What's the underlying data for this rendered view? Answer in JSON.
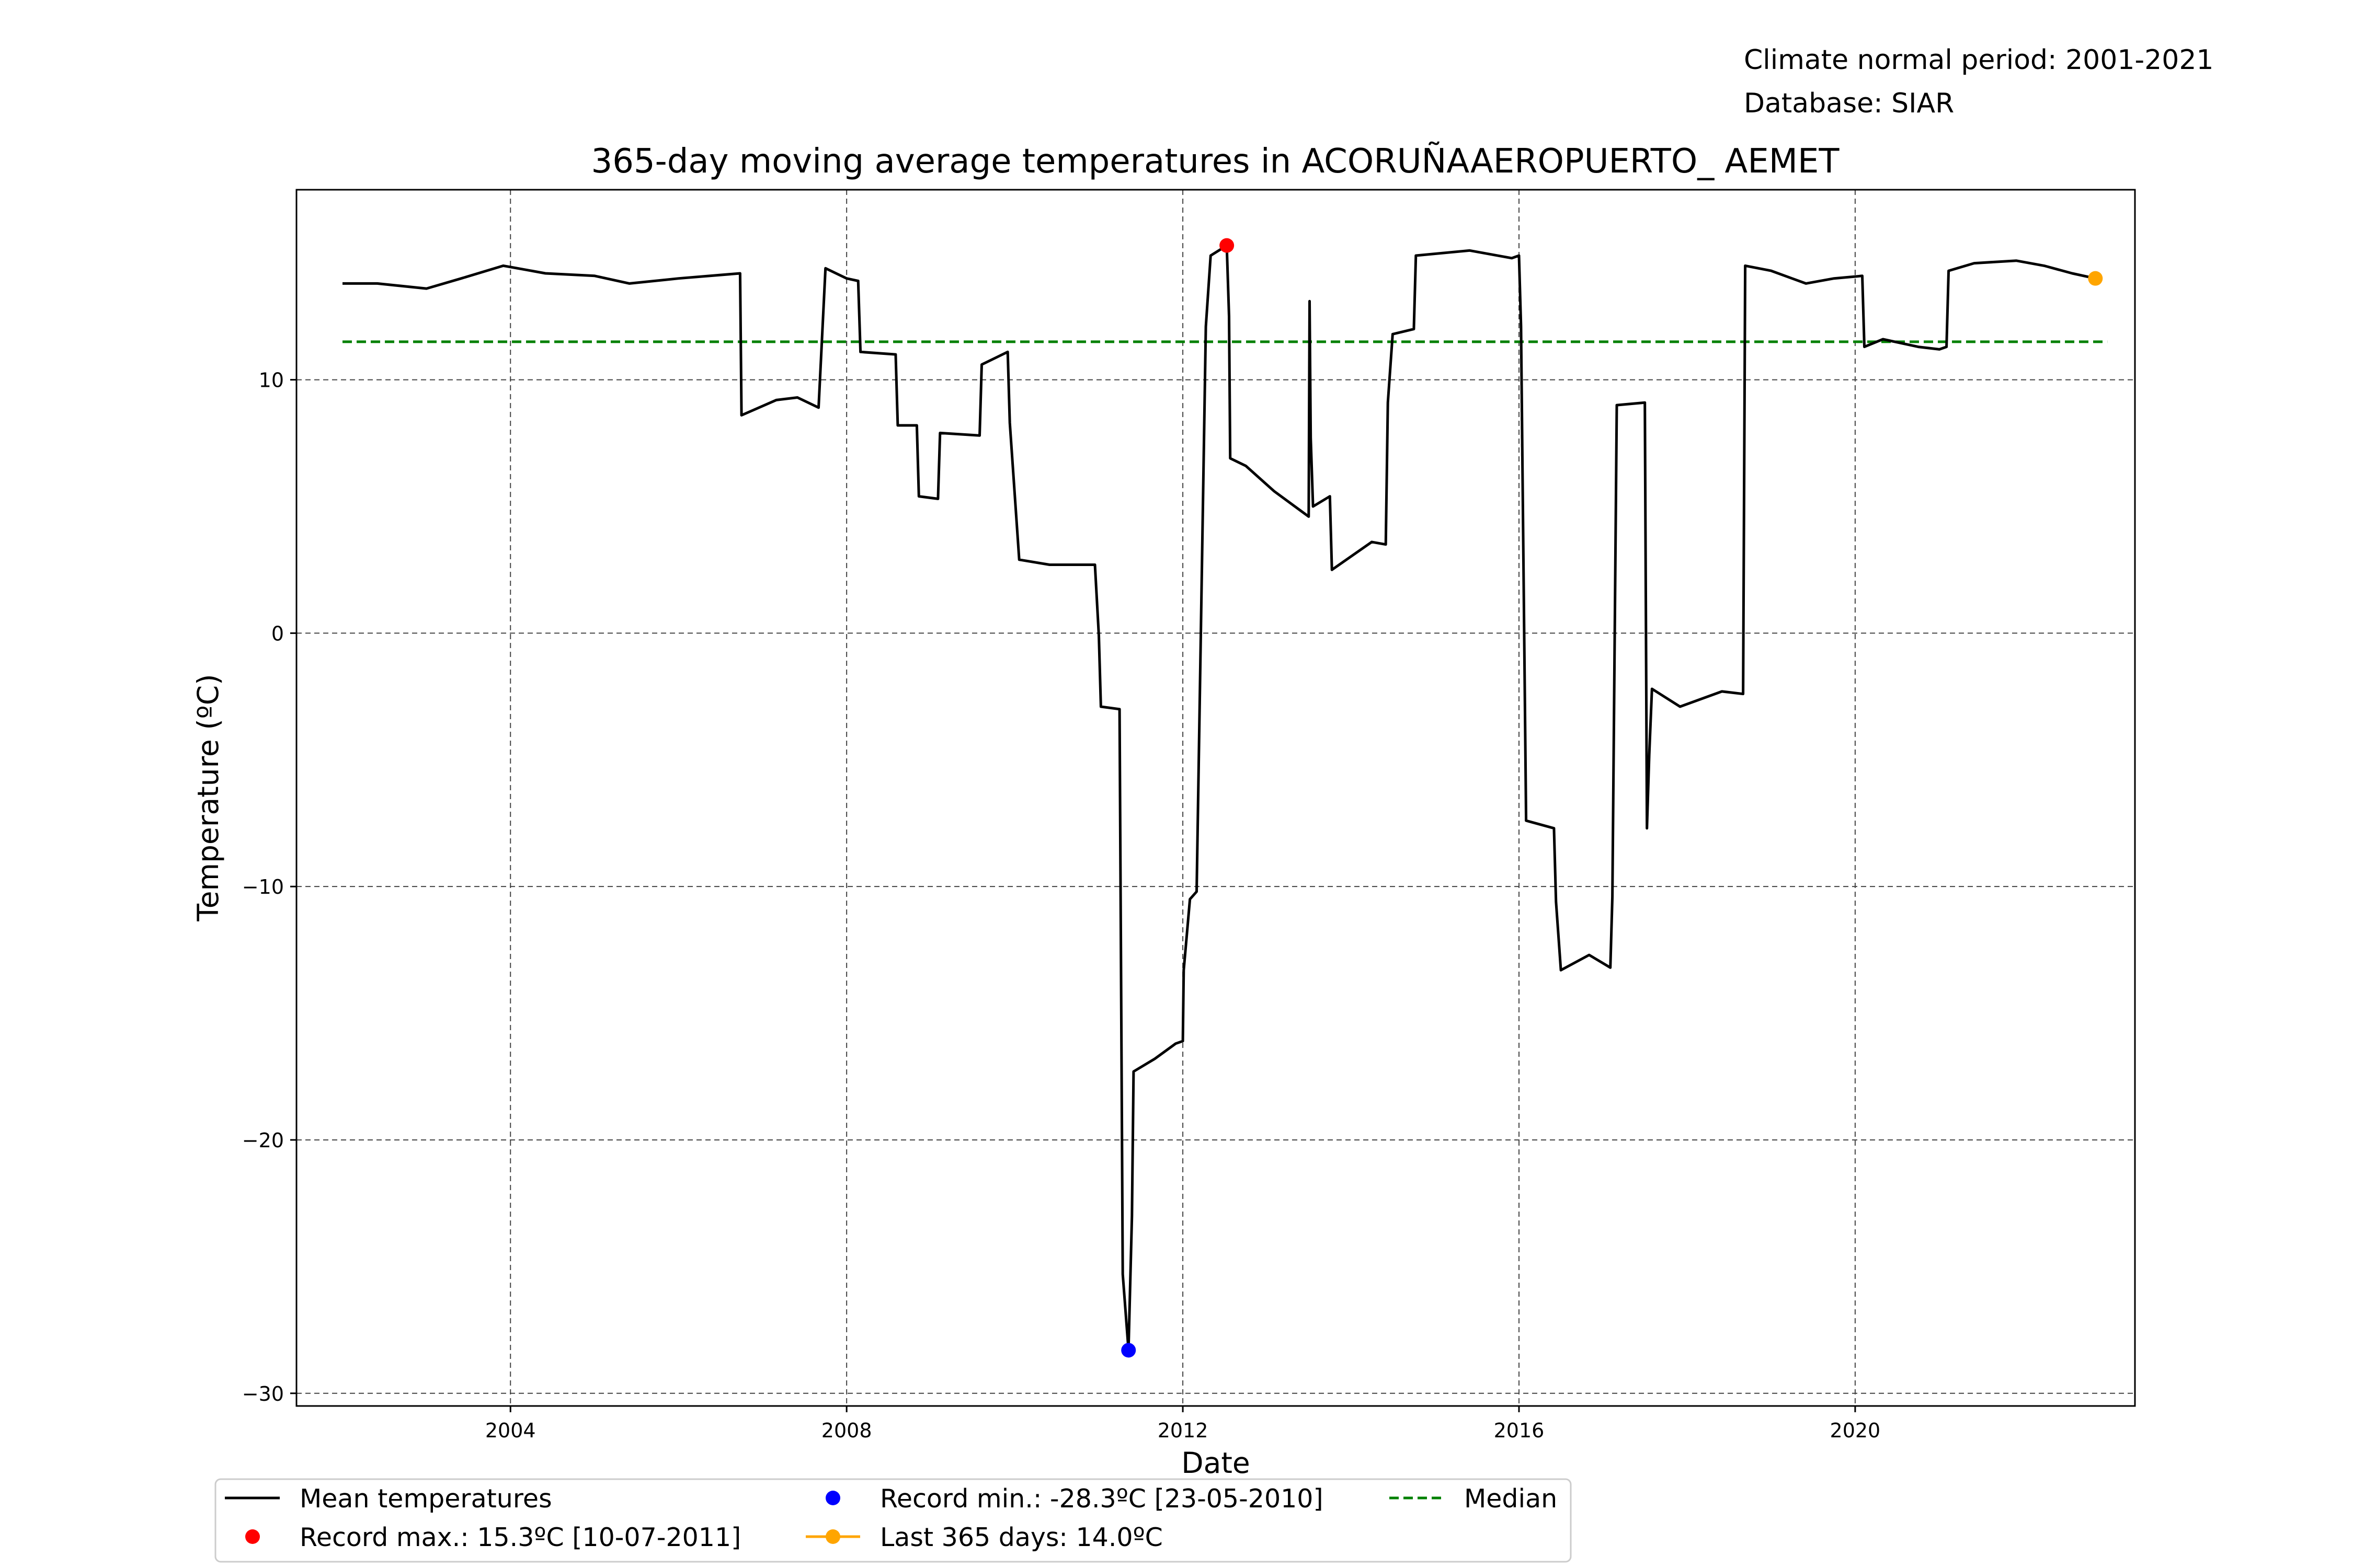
{
  "header": {
    "normal_period": "Climate normal period: 2001-2021",
    "database": "Database: SIAR"
  },
  "chart_data": {
    "type": "line",
    "title": "365-day moving average temperatures in ACORUÑAAEROPUERTO_ AEMET",
    "xlabel": "Date",
    "ylabel": "Temperature (ºC)",
    "xlim": [
      "2001-06-15",
      "2023-05-01"
    ],
    "ylim": [
      -30.5,
      17.5
    ],
    "x_ticks": [
      "2004",
      "2008",
      "2012",
      "2016",
      "2020"
    ],
    "y_ticks": [
      -30,
      -20,
      -10,
      0,
      10
    ],
    "grid": true,
    "legend_position": "bottom-center",
    "series": [
      {
        "name": "Mean temperatures",
        "color": "#000000",
        "style": "solid",
        "points": [
          [
            "2002-01-01",
            13.8
          ],
          [
            "2002-06-01",
            13.8
          ],
          [
            "2003-01-01",
            13.6
          ],
          [
            "2003-06-01",
            14.0
          ],
          [
            "2003-12-01",
            14.5
          ],
          [
            "2004-06-01",
            14.2
          ],
          [
            "2005-01-01",
            14.1
          ],
          [
            "2005-06-01",
            13.8
          ],
          [
            "2006-01-01",
            14.0
          ],
          [
            "2006-09-25",
            14.2
          ],
          [
            "2006-10-01",
            8.6
          ],
          [
            "2007-03-01",
            9.2
          ],
          [
            "2007-06-01",
            9.3
          ],
          [
            "2007-09-01",
            8.9
          ],
          [
            "2007-10-01",
            14.4
          ],
          [
            "2008-01-01",
            14.0
          ],
          [
            "2008-02-20",
            13.9
          ],
          [
            "2008-03-01",
            11.1
          ],
          [
            "2008-08-01",
            11.0
          ],
          [
            "2008-08-10",
            8.2
          ],
          [
            "2008-11-01",
            8.2
          ],
          [
            "2008-11-10",
            5.4
          ],
          [
            "2009-02-01",
            5.3
          ],
          [
            "2009-02-10",
            7.9
          ],
          [
            "2009-08-01",
            7.8
          ],
          [
            "2009-08-10",
            10.6
          ],
          [
            "2009-12-01",
            11.1
          ],
          [
            "2009-12-10",
            8.3
          ],
          [
            "2010-01-20",
            2.9
          ],
          [
            "2010-06-01",
            2.7
          ],
          [
            "2010-12-15",
            2.7
          ],
          [
            "2011-01-01",
            -0.1
          ],
          [
            "2011-01-10",
            -2.9
          ],
          [
            "2011-04-01",
            -3.0
          ],
          [
            "2011-04-15",
            -25.3
          ],
          [
            "2011-05-10",
            -28.3
          ],
          [
            "2011-05-25",
            -23.0
          ],
          [
            "2011-06-01",
            -17.3
          ],
          [
            "2011-09-01",
            -16.8
          ],
          [
            "2011-12-01",
            -16.2
          ],
          [
            "2012-01-01",
            -16.1
          ],
          [
            "2012-01-05",
            -13.3
          ],
          [
            "2012-02-01",
            -10.5
          ],
          [
            "2012-03-01",
            -10.2
          ],
          [
            "2012-04-10",
            12.1
          ],
          [
            "2012-05-01",
            14.9
          ],
          [
            "2012-07-10",
            15.3
          ],
          [
            "2012-07-20",
            12.5
          ],
          [
            "2012-07-25",
            6.9
          ],
          [
            "2012-10-01",
            6.6
          ],
          [
            "2013-02-01",
            5.6
          ],
          [
            "2013-06-01",
            4.8
          ],
          [
            "2013-07-01",
            4.6
          ],
          [
            "2013-07-05",
            13.1
          ],
          [
            "2013-07-10",
            7.7
          ],
          [
            "2013-07-20",
            5.0
          ],
          [
            "2013-10-01",
            5.4
          ],
          [
            "2013-10-10",
            2.5
          ],
          [
            "2014-04-01",
            3.6
          ],
          [
            "2014-06-01",
            3.5
          ],
          [
            "2014-06-10",
            9.1
          ],
          [
            "2014-07-01",
            11.8
          ],
          [
            "2014-10-01",
            12.0
          ],
          [
            "2014-10-10",
            14.9
          ],
          [
            "2015-06-01",
            15.1
          ],
          [
            "2015-12-01",
            14.8
          ],
          [
            "2016-01-01",
            14.9
          ],
          [
            "2016-01-10",
            12.1
          ],
          [
            "2016-02-01",
            -7.4
          ],
          [
            "2016-06-01",
            -7.7
          ],
          [
            "2016-06-10",
            -10.6
          ],
          [
            "2016-07-01",
            -13.3
          ],
          [
            "2016-11-01",
            -12.7
          ],
          [
            "2017-02-01",
            -13.2
          ],
          [
            "2017-02-10",
            -10.4
          ],
          [
            "2017-03-01",
            9.0
          ],
          [
            "2017-07-01",
            9.1
          ],
          [
            "2017-07-10",
            -7.7
          ],
          [
            "2017-07-20",
            -4.8
          ],
          [
            "2017-08-01",
            -2.2
          ],
          [
            "2017-12-01",
            -2.9
          ],
          [
            "2018-06-01",
            -2.3
          ],
          [
            "2018-09-01",
            -2.4
          ],
          [
            "2018-09-10",
            14.5
          ],
          [
            "2019-01-01",
            14.3
          ],
          [
            "2019-06-01",
            13.8
          ],
          [
            "2019-10-01",
            14.0
          ],
          [
            "2020-02-01",
            14.1
          ],
          [
            "2020-02-10",
            11.3
          ],
          [
            "2020-05-01",
            11.6
          ],
          [
            "2020-10-01",
            11.3
          ],
          [
            "2021-01-01",
            11.2
          ],
          [
            "2021-02-01",
            11.3
          ],
          [
            "2021-02-10",
            14.3
          ],
          [
            "2021-06-01",
            14.6
          ],
          [
            "2021-12-01",
            14.7
          ],
          [
            "2022-04-01",
            14.5
          ],
          [
            "2022-08-01",
            14.2
          ],
          [
            "2022-11-10",
            14.0
          ]
        ]
      },
      {
        "name": "Median",
        "color": "#008000",
        "style": "dashed",
        "value": 11.5,
        "x_range": [
          "2002-01-01",
          "2023-01-01"
        ]
      }
    ],
    "markers": [
      {
        "name": "Record max.: 15.3ºC [10-07-2011]",
        "date": "2012-07-10",
        "value": 15.3,
        "color": "#ff0000"
      },
      {
        "name": "Record min.: -28.3ºC [23-05-2010]",
        "date": "2011-05-10",
        "value": -28.3,
        "color": "#0000ff"
      },
      {
        "name": "Last 365 days: 14.0ºC",
        "date": "2022-11-10",
        "value": 14.0,
        "color": "#ffa500"
      }
    ]
  },
  "legend": {
    "items": [
      {
        "label": "Mean temperatures",
        "kind": "line",
        "color": "#000000"
      },
      {
        "label": "Record max.: 15.3ºC [10-07-2011]",
        "kind": "dot",
        "color": "#ff0000"
      },
      {
        "label": "Record min.: -28.3ºC [23-05-2010]",
        "kind": "dot",
        "color": "#0000ff"
      },
      {
        "label": "Last 365 days: 14.0ºC",
        "kind": "line-dot",
        "color": "#ffa500"
      },
      {
        "label": "Median",
        "kind": "dashed",
        "color": "#008000"
      }
    ]
  }
}
